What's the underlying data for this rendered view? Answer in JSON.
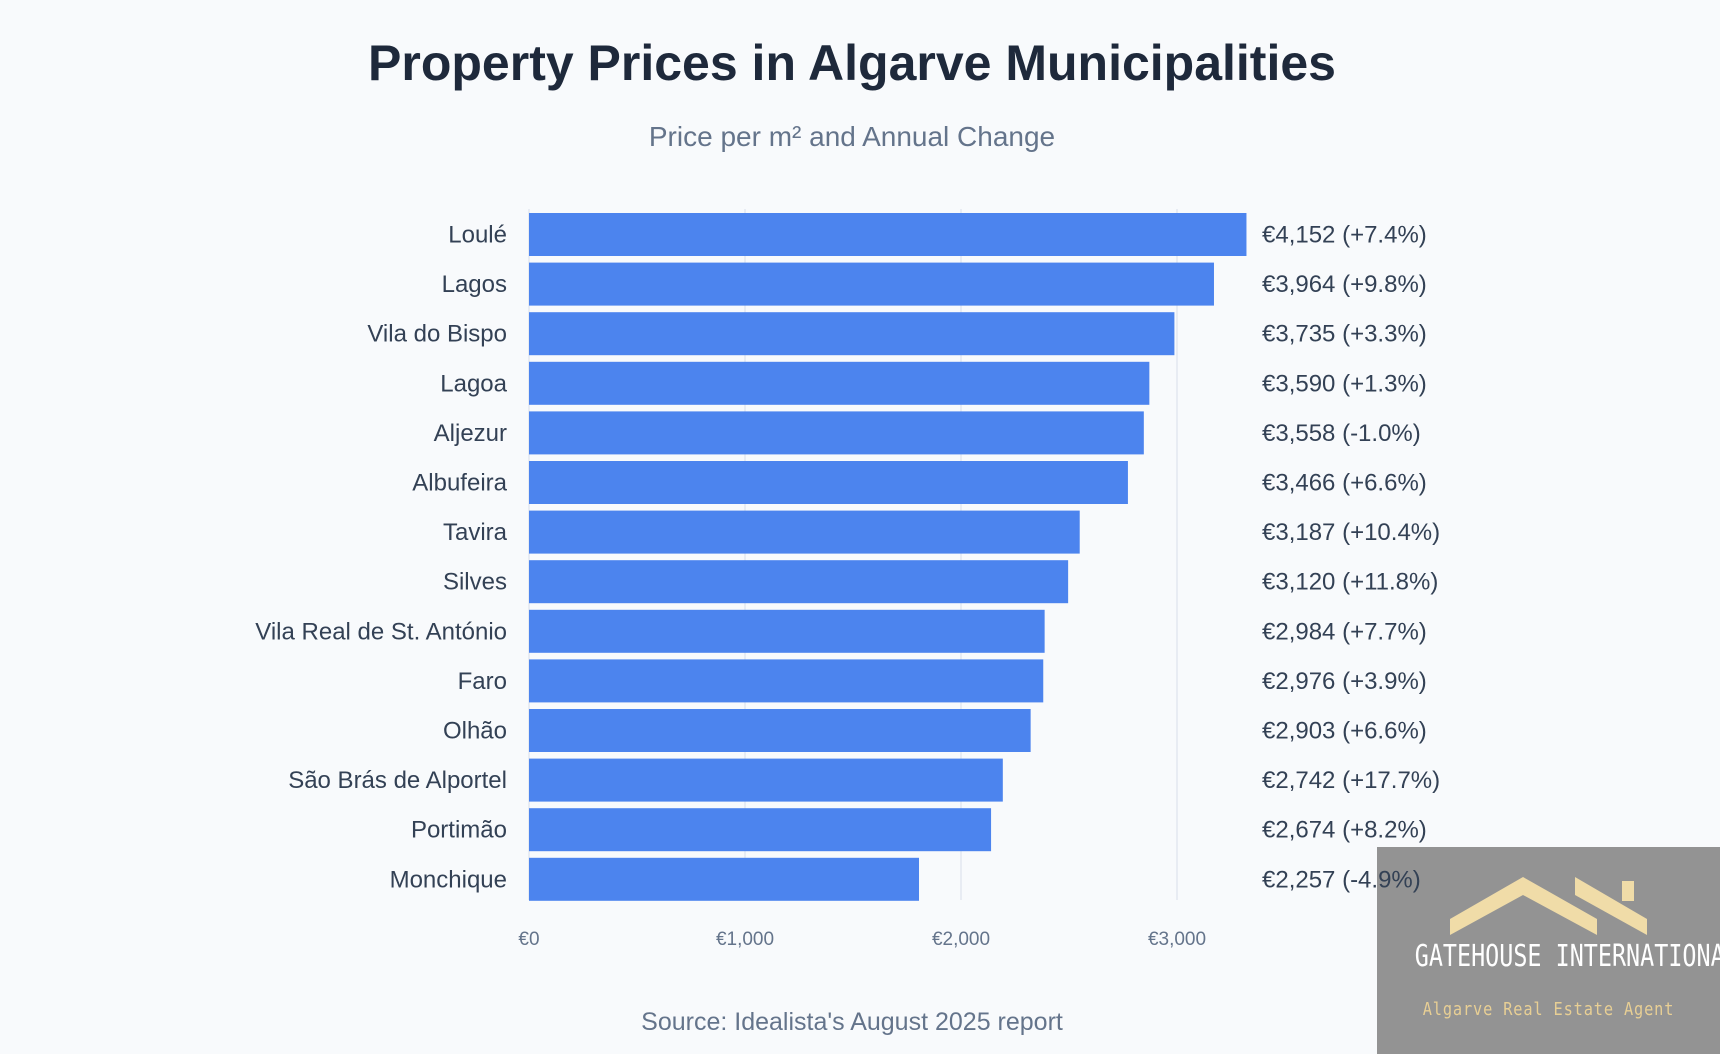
{
  "chart_data": {
    "type": "bar",
    "orientation": "horizontal",
    "title": "Property Prices in Algarve Municipalities",
    "subtitle": "Price per m² and Annual Change",
    "categories": [
      "Loulé",
      "Lagos",
      "Vila do Bispo",
      "Lagoa",
      "Aljezur",
      "Albufeira",
      "Tavira",
      "Silves",
      "Vila Real de St. António",
      "Faro",
      "Olhão",
      "São Brás de Alportel",
      "Portimão",
      "Monchique"
    ],
    "values": [
      4152,
      3964,
      3735,
      3590,
      3558,
      3466,
      3187,
      3120,
      2984,
      2976,
      2903,
      2742,
      2674,
      2257
    ],
    "annual_change_pct": [
      7.4,
      9.8,
      3.3,
      1.3,
      -1.0,
      6.6,
      10.4,
      11.8,
      7.7,
      3.9,
      6.6,
      17.7,
      8.2,
      -4.9
    ],
    "data_labels": [
      "€4,152 (+7.4%)",
      "€3,964 (+9.8%)",
      "€3,735 (+3.3%)",
      "€3,590 (+1.3%)",
      "€3,558 (-1.0%)",
      "€3,466 (+6.6%)",
      "€3,187 (+10.4%)",
      "€3,120 (+11.8%)",
      "€2,984 (+7.7%)",
      "€2,976 (+3.9%)",
      "€2,903 (+6.6%)",
      "€2,742 (+17.7%)",
      "€2,674 (+8.2%)",
      "€2,257 (-4.9%)"
    ],
    "x_ticks": [
      0,
      1000,
      2000,
      3000
    ],
    "x_tick_labels": [
      "€0",
      "€1,000",
      "€2,000",
      "€3,000"
    ],
    "grid": true,
    "bar_color": "#4c84ee",
    "source": "Source: Idealista's August 2025 report"
  },
  "watermark": {
    "name": "GATEHOUSE INTERNATIONAL",
    "tagline": "Algarve Real Estate Agent",
    "background": "#939393",
    "accent": "#f0dca8"
  }
}
